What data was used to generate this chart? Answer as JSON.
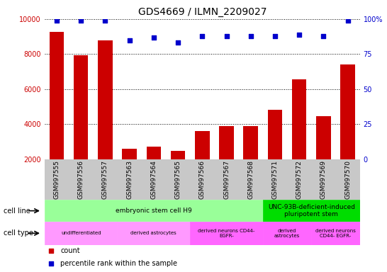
{
  "title": "GDS4669 / ILMN_2209027",
  "samples": [
    "GSM997555",
    "GSM997556",
    "GSM997557",
    "GSM997563",
    "GSM997564",
    "GSM997565",
    "GSM997566",
    "GSM997567",
    "GSM997568",
    "GSM997571",
    "GSM997572",
    "GSM997569",
    "GSM997570"
  ],
  "counts": [
    9250,
    7950,
    8800,
    2600,
    2700,
    2480,
    3600,
    3900,
    3900,
    4800,
    6550,
    4450,
    7400
  ],
  "percentile": [
    99,
    99,
    99,
    85,
    87,
    83,
    88,
    88,
    88,
    88,
    89,
    88,
    99
  ],
  "ylim_left": [
    2000,
    10000
  ],
  "ylim_right": [
    0,
    100
  ],
  "yticks_left": [
    2000,
    4000,
    6000,
    8000,
    10000
  ],
  "yticks_right": [
    0,
    25,
    50,
    75,
    100
  ],
  "bar_color": "#cc0000",
  "dot_color": "#0000cc",
  "cell_line_segments": [
    {
      "label": "embryonic stem cell H9",
      "start": 0,
      "end": 9,
      "color": "#99ff99"
    },
    {
      "label": "UNC-93B-deficient-induced\npluripotent stem",
      "start": 9,
      "end": 13,
      "color": "#00dd00"
    }
  ],
  "cell_type_segments": [
    {
      "label": "undifferentiated",
      "start": 0,
      "end": 3,
      "color": "#ff99ff"
    },
    {
      "label": "derived astrocytes",
      "start": 3,
      "end": 6,
      "color": "#ff99ff"
    },
    {
      "label": "derived neurons CD44-\nEGFR-",
      "start": 6,
      "end": 9,
      "color": "#ff66ff"
    },
    {
      "label": "derived\nastrocytes",
      "start": 9,
      "end": 11,
      "color": "#ff66ff"
    },
    {
      "label": "derived neurons\nCD44- EGFR-",
      "start": 11,
      "end": 13,
      "color": "#ff66ff"
    }
  ],
  "bg_gray": "#c8c8c8",
  "cell_line_label": "cell line",
  "cell_type_label": "cell type",
  "legend_count": "count",
  "legend_pct": "percentile rank within the sample",
  "title_fontsize": 10,
  "tick_fontsize": 7,
  "label_fontsize": 7,
  "ann_fontsize": 6.5
}
